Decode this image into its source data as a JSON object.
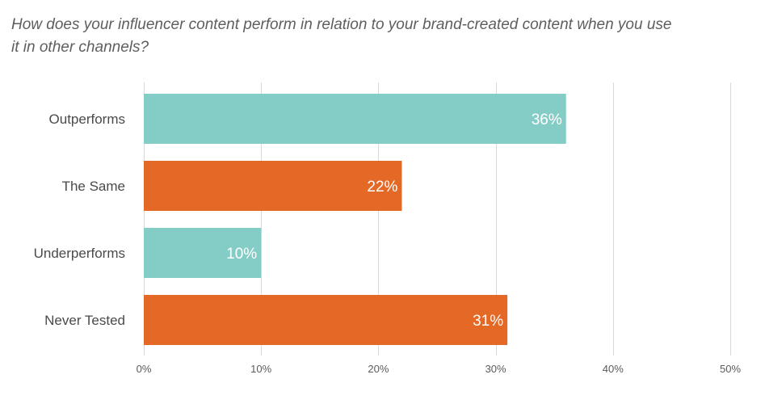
{
  "chart_data": {
    "type": "bar",
    "orientation": "horizontal",
    "title": "How does your influencer content perform in relation to your brand-created content when you use it in other channels?",
    "categories": [
      "Outperforms",
      "The Same",
      "Underperforms",
      "Never Tested"
    ],
    "values": [
      36,
      22,
      10,
      31
    ],
    "value_labels": [
      "36%",
      "22%",
      "10%",
      "31%"
    ],
    "bar_colors": [
      "#84cdc6",
      "#e46826",
      "#84cdc6",
      "#e46826"
    ],
    "xlim": [
      0,
      50
    ],
    "x_ticks": [
      0,
      10,
      20,
      30,
      40,
      50
    ],
    "x_tick_labels": [
      "0%",
      "10%",
      "20%",
      "30%",
      "40%",
      "50%"
    ],
    "grid": true,
    "legend": "none"
  }
}
